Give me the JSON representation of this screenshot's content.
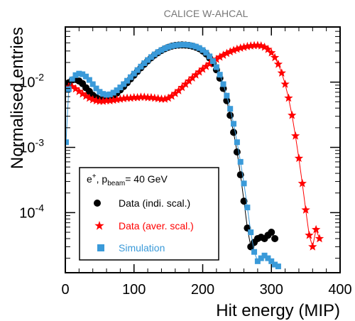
{
  "chart_data": {
    "type": "scatter",
    "header": "CALICE W-AHCAL",
    "xlabel": "Hit energy (MIP)",
    "ylabel": "Normalised entries",
    "xlim": [
      0,
      400
    ],
    "ylim": [
      1.2e-05,
      0.07
    ],
    "yscale": "log",
    "x_ticks": [
      0,
      100,
      200,
      300,
      400
    ],
    "x_tick_labels": [
      "0",
      "100",
      "200",
      "300",
      "400"
    ],
    "y_ticks": [
      0.01,
      0.001,
      0.0001
    ],
    "y_tick_base": "10",
    "y_tick_exponents": [
      "-2",
      "-3",
      "-4"
    ],
    "legend": {
      "placement": "bottom-left",
      "title_prefix": "e",
      "title_sup": "+",
      "title_mid": ", p",
      "title_sub": "beam",
      "title_suffix": "= 40 GeV"
    },
    "series": [
      {
        "name": "Data (indi. scal.)",
        "color": "#000000",
        "marker": "circle",
        "x": [
          1,
          5,
          10,
          15,
          20,
          25,
          30,
          35,
          40,
          45,
          50,
          55,
          60,
          65,
          70,
          75,
          80,
          85,
          90,
          95,
          100,
          105,
          110,
          115,
          120,
          125,
          130,
          135,
          140,
          145,
          150,
          155,
          160,
          165,
          170,
          175,
          180,
          185,
          190,
          195,
          200,
          205,
          210,
          215,
          220,
          225,
          230,
          235,
          240,
          245,
          250,
          255,
          260,
          265,
          270,
          275,
          280,
          285,
          290,
          295,
          300,
          305
        ],
        "y": [
          0.0085,
          0.0098,
          0.0108,
          0.011,
          0.0104,
          0.0095,
          0.0082,
          0.0072,
          0.0063,
          0.0058,
          0.0055,
          0.0054,
          0.0055,
          0.0058,
          0.0062,
          0.0068,
          0.0076,
          0.0086,
          0.0098,
          0.0112,
          0.0128,
          0.0146,
          0.0166,
          0.0188,
          0.0212,
          0.0236,
          0.026,
          0.0283,
          0.0305,
          0.0325,
          0.0342,
          0.0356,
          0.0365,
          0.037,
          0.0372,
          0.037,
          0.0365,
          0.0356,
          0.0343,
          0.0325,
          0.03,
          0.027,
          0.0235,
          0.0195,
          0.0155,
          0.0115,
          0.008,
          0.0052,
          0.0031,
          0.0017,
          0.00085,
          0.00038,
          0.00015,
          5.8e-05,
          3e-05,
          3.5e-05,
          4e-05,
          4.2e-05,
          4e-05,
          4.5e-05,
          5e-05,
          4e-05
        ]
      },
      {
        "name": "Data (aver. scal.)",
        "color": "#ff0000",
        "marker": "star",
        "x": [
          1,
          5,
          10,
          15,
          20,
          25,
          30,
          35,
          40,
          45,
          50,
          55,
          60,
          65,
          70,
          75,
          80,
          85,
          90,
          95,
          100,
          105,
          110,
          115,
          120,
          125,
          130,
          135,
          140,
          145,
          150,
          155,
          160,
          165,
          170,
          175,
          180,
          185,
          190,
          195,
          200,
          205,
          210,
          215,
          220,
          225,
          230,
          235,
          240,
          245,
          250,
          255,
          260,
          265,
          270,
          275,
          280,
          285,
          290,
          295,
          300,
          305,
          310,
          315,
          320,
          325,
          330,
          335,
          340,
          345,
          350,
          355,
          360,
          365,
          370
        ],
        "y": [
          0.0079,
          0.0086,
          0.0085,
          0.0079,
          0.0072,
          0.0066,
          0.0061,
          0.0057,
          0.0054,
          0.0052,
          0.0051,
          0.0051,
          0.0052,
          0.0052,
          0.0053,
          0.0054,
          0.0055,
          0.0056,
          0.0057,
          0.0057,
          0.0058,
          0.0058,
          0.0059,
          0.0059,
          0.0058,
          0.0058,
          0.0057,
          0.0056,
          0.0055,
          0.0055,
          0.0057,
          0.0061,
          0.0067,
          0.0074,
          0.0083,
          0.0093,
          0.0104,
          0.0116,
          0.0129,
          0.0143,
          0.0158,
          0.0174,
          0.019,
          0.0207,
          0.0224,
          0.0242,
          0.0259,
          0.0276,
          0.0292,
          0.0307,
          0.0321,
          0.0333,
          0.0343,
          0.0352,
          0.0359,
          0.0364,
          0.0366,
          0.036,
          0.0344,
          0.0318,
          0.0282,
          0.0238,
          0.0188,
          0.0138,
          0.0093,
          0.0057,
          0.0031,
          0.0015,
          0.00068,
          0.00028,
          0.00011,
          4.5e-05,
          3e-05,
          5.5e-05,
          4e-05
        ]
      },
      {
        "name": "Simulation",
        "color": "#3a9ad9",
        "marker": "square",
        "x": [
          1,
          5,
          10,
          15,
          20,
          25,
          30,
          35,
          40,
          45,
          50,
          55,
          60,
          65,
          70,
          75,
          80,
          85,
          90,
          95,
          100,
          105,
          110,
          115,
          120,
          125,
          130,
          135,
          140,
          145,
          150,
          155,
          160,
          165,
          170,
          175,
          180,
          185,
          190,
          195,
          200,
          205,
          210,
          215,
          220,
          225,
          230,
          235,
          240,
          245,
          250,
          255,
          260,
          265,
          270,
          275,
          280,
          285,
          290,
          295,
          300,
          305,
          310
        ],
        "y": [
          0.0012,
          0.0078,
          0.011,
          0.0128,
          0.0135,
          0.0132,
          0.0122,
          0.0108,
          0.0093,
          0.008,
          0.0071,
          0.0066,
          0.0064,
          0.0065,
          0.0069,
          0.0075,
          0.0083,
          0.0093,
          0.0105,
          0.0119,
          0.0135,
          0.0153,
          0.0173,
          0.0195,
          0.0218,
          0.0242,
          0.0266,
          0.0289,
          0.031,
          0.0329,
          0.0345,
          0.0358,
          0.0367,
          0.0372,
          0.0375,
          0.0374,
          0.037,
          0.0362,
          0.035,
          0.0333,
          0.031,
          0.0282,
          0.0248,
          0.021,
          0.017,
          0.013,
          0.0093,
          0.0062,
          0.0039,
          0.0023,
          0.0012,
          0.0006,
          0.00028,
          0.00012,
          5e-05,
          2.5e-05,
          1.8e-05,
          2e-05,
          2.2e-05,
          2e-05,
          1.8e-05,
          1.6e-05,
          1.5e-05
        ]
      }
    ]
  }
}
